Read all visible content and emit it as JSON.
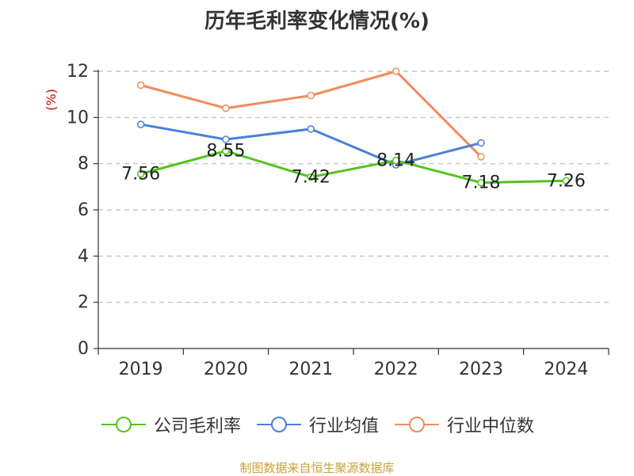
{
  "chart_data": {
    "type": "line",
    "title": "历年毛利率变化情况(%)",
    "ylabel": "(%)",
    "xlabel": "",
    "ylim": [
      0,
      12
    ],
    "yticks": [
      0,
      2,
      4,
      6,
      8,
      10,
      12
    ],
    "categories": [
      "2019",
      "2020",
      "2021",
      "2022",
      "2023",
      "2024"
    ],
    "grid": "horizontal dashed",
    "legend_position": "bottom",
    "series": [
      {
        "name": "公司毛利率",
        "color": "#52c41a",
        "values": [
          7.56,
          8.55,
          7.42,
          8.14,
          7.18,
          7.26
        ],
        "labels": [
          "7.56",
          "8.55",
          "7.42",
          "8.14",
          "7.18",
          "7.26"
        ]
      },
      {
        "name": "行业均值",
        "color": "#4a7fdc",
        "values": [
          9.7,
          9.05,
          9.5,
          7.95,
          8.9,
          null
        ]
      },
      {
        "name": "行业中位数",
        "color": "#f28c5a",
        "values": [
          11.4,
          10.4,
          10.95,
          12.0,
          8.3,
          null
        ]
      }
    ]
  },
  "source": "制图数据来自恒生聚源数据库"
}
